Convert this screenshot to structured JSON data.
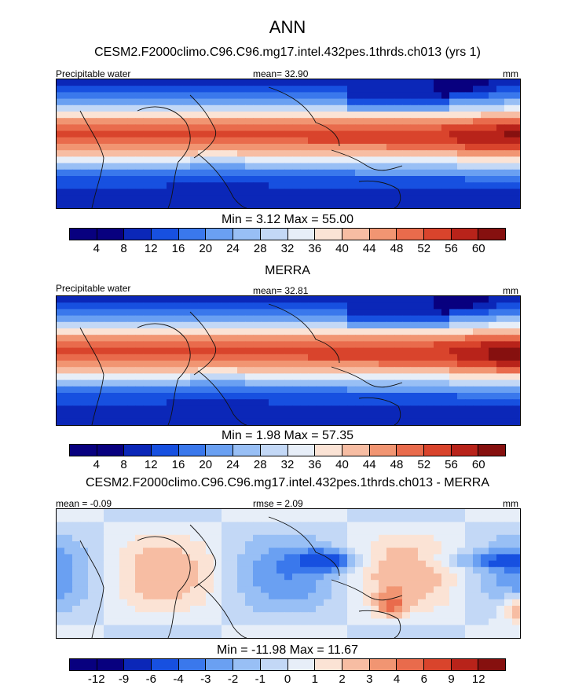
{
  "season": "ANN",
  "colors": {
    "abs": [
      "#08007f",
      "#0b27b8",
      "#1750e0",
      "#3a78ec",
      "#6aa0f2",
      "#98bff5",
      "#c3d8f6",
      "#e7eef8",
      "#fbe3d5",
      "#f7bda3",
      "#f19572",
      "#e96b4c",
      "#d9442c",
      "#b8231a",
      "#86100f"
    ],
    "diff": [
      "#08007f",
      "#0b27b8",
      "#1750e0",
      "#3a78ec",
      "#6aa0f2",
      "#98bff5",
      "#c3d8f6",
      "#e7eef8",
      "#fbe3d5",
      "#f7bda3",
      "#f19572",
      "#e96b4c",
      "#d9442c",
      "#b8231a",
      "#86100f"
    ]
  },
  "panels": [
    {
      "title": "CESM2.F2000climo.C96.C96.mg17.intel.432pes.1thrds.ch013 (yrs 1)",
      "left_label": "Precipitable water",
      "center_label": "mean=  32.90",
      "right_label": "mm",
      "minmax": "Min =   3.12 Max =  55.00",
      "ticks": [
        "4",
        "8",
        "12",
        "16",
        "20",
        "24",
        "28",
        "32",
        "36",
        "40",
        "44",
        "48",
        "52",
        "56",
        "60"
      ],
      "field": "model"
    },
    {
      "title": "MERRA",
      "left_label": "Precipitable water",
      "center_label": "mean=  32.81",
      "right_label": "mm",
      "minmax": "Min =   1.98 Max =  57.35",
      "ticks": [
        "4",
        "8",
        "12",
        "16",
        "20",
        "24",
        "28",
        "32",
        "36",
        "40",
        "44",
        "48",
        "52",
        "56",
        "60"
      ],
      "field": "obs"
    },
    {
      "title": "CESM2.F2000climo.C96.C96.mg17.intel.432pes.1thrds.ch013 - MERRA",
      "left_label": "mean =  -0.09",
      "center_label": "rmse =   2.09",
      "right_label": "mm",
      "minmax": "Min = -11.98 Max =  11.67",
      "ticks": [
        "-12",
        "-9",
        "-6",
        "-4",
        "-3",
        "-2",
        "-1",
        "0",
        "1",
        "2",
        "3",
        "4",
        "6",
        "9",
        "12"
      ],
      "field": "diff"
    }
  ]
}
